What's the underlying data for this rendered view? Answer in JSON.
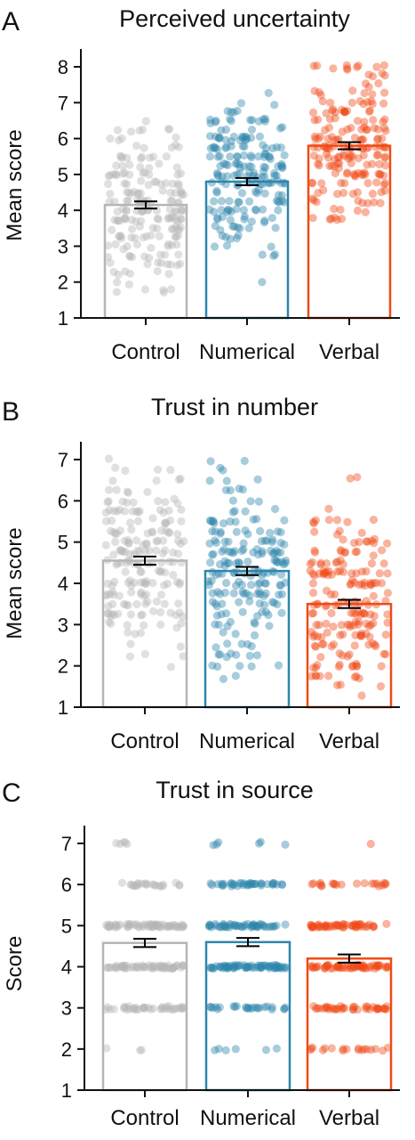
{
  "colors": {
    "Control": "#b8b4b6",
    "Numerical": "#2e86ab",
    "Verbal": "#f04a17",
    "axis": "#111111"
  },
  "chart_data": [
    {
      "type": "bar",
      "panel_letter": "A",
      "title": "Perceived uncertainty",
      "xlabel": "",
      "ylabel": "Mean score",
      "categories": [
        "Control",
        "Numerical",
        "Verbal"
      ],
      "values": [
        4.15,
        4.8,
        5.8
      ],
      "error": [
        0.1,
        0.1,
        0.1
      ],
      "ylim": [
        1,
        8
      ],
      "yticks": [
        1,
        2,
        3,
        4,
        5,
        6,
        7,
        8
      ],
      "points": "individual jittered responses shown as translucent dots",
      "discrete_points": false
    },
    {
      "type": "bar",
      "panel_letter": "B",
      "title": "Trust in number",
      "xlabel": "",
      "ylabel": "Mean score",
      "categories": [
        "Control",
        "Numerical",
        "Verbal"
      ],
      "values": [
        4.55,
        4.3,
        3.5
      ],
      "error": [
        0.1,
        0.1,
        0.1
      ],
      "ylim": [
        1,
        7
      ],
      "yticks": [
        1,
        2,
        3,
        4,
        5,
        6,
        7
      ],
      "points": "individual jittered responses shown as translucent dots",
      "discrete_points": false
    },
    {
      "type": "bar",
      "panel_letter": "C",
      "title": "Trust in source",
      "xlabel": "",
      "ylabel": "Score",
      "categories": [
        "Control",
        "Numerical",
        "Verbal"
      ],
      "values": [
        4.58,
        4.6,
        4.2
      ],
      "error": [
        0.1,
        0.1,
        0.1
      ],
      "ylim": [
        1,
        7
      ],
      "yticks": [
        1,
        2,
        3,
        4,
        5,
        6,
        7
      ],
      "points": "individual jittered responses shown as translucent dots",
      "discrete_points": true
    }
  ]
}
